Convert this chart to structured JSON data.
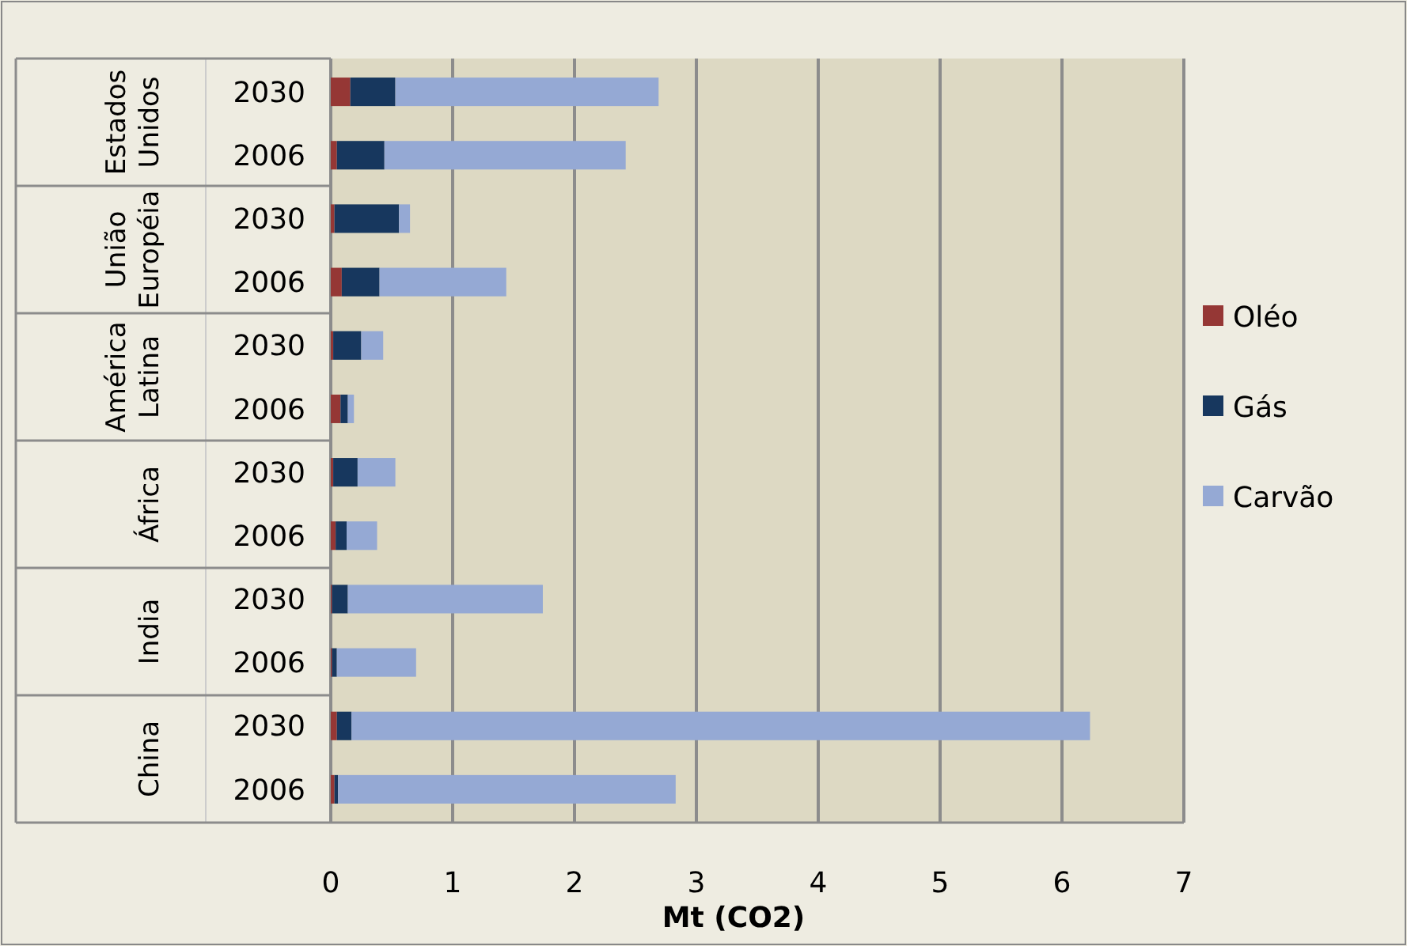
{
  "chart_data": {
    "type": "bar",
    "orientation": "horizontal",
    "stacked": true,
    "categories": [
      "2030",
      "2006",
      "2030",
      "2006",
      "2030",
      "2006",
      "2030",
      "2006",
      "2030",
      "2006",
      "2030",
      "2006"
    ],
    "annotations": [
      "Estados Unidos",
      "União Européia",
      "América Latina",
      "África",
      "India",
      "China"
    ],
    "series": [
      {
        "name": "Oléo",
        "color": "#953735",
        "values": [
          0.16,
          0.05,
          0.03,
          0.09,
          0.02,
          0.08,
          0.02,
          0.04,
          0.01,
          0.01,
          0.05,
          0.03
        ]
      },
      {
        "name": "Gás",
        "color": "#17375e",
        "values": [
          0.37,
          0.39,
          0.53,
          0.31,
          0.23,
          0.06,
          0.2,
          0.09,
          0.13,
          0.04,
          0.12,
          0.03
        ]
      },
      {
        "name": "Carvão",
        "color": "#95a9d4",
        "values": [
          2.16,
          1.98,
          0.09,
          1.04,
          0.18,
          0.05,
          0.31,
          0.25,
          1.6,
          0.65,
          6.06,
          2.77
        ]
      }
    ],
    "xlim": [
      0,
      7
    ],
    "xticks": [
      0,
      1,
      2,
      3,
      4,
      5,
      6,
      7
    ],
    "xlabel": "Mt (CO2)",
    "grid": "x",
    "legend": "right"
  }
}
